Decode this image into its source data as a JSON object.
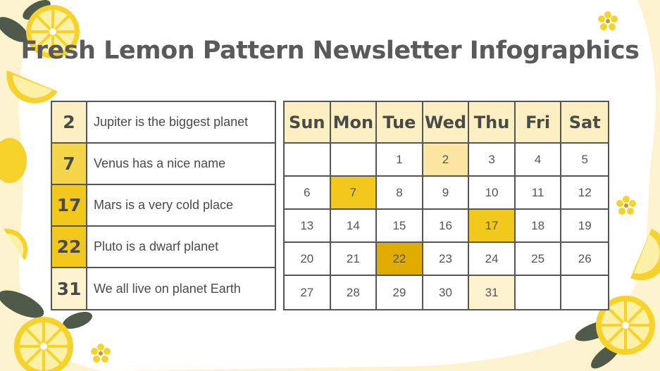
{
  "title": "Fresh Lemon Pattern Newsletter Infographics",
  "colors": {
    "background": "#fdf3cf",
    "panel": "#ffffff",
    "border": "#555555",
    "highlight_light": "#fbe7a2",
    "highlight_medium": "#f2c81c",
    "highlight_strong": "#e0ac00",
    "header_fill": "#fcefc2",
    "lemon": "#f6d22a",
    "leaf": "#4f5a4a"
  },
  "events": [
    {
      "day": "2",
      "text": "Jupiter is the biggest planet",
      "color": "#fcefc2"
    },
    {
      "day": "7",
      "text": "Venus has a nice name",
      "color": "#f5d64a"
    },
    {
      "day": "17",
      "text": "Mars is a very cold place",
      "color": "#f2c81c"
    },
    {
      "day": "22",
      "text": "Pluto is a dwarf planet",
      "color": "#f2c81c"
    },
    {
      "day": "31",
      "text": "We all live on planet Earth",
      "color": "#fdf3cf"
    }
  ],
  "calendar": {
    "weekdays": [
      "Sun",
      "Mon",
      "Tue",
      "Wed",
      "Thu",
      "Fri",
      "Sat"
    ],
    "weeks": [
      [
        "",
        "",
        "1",
        "2",
        "3",
        "4",
        "5"
      ],
      [
        "6",
        "7",
        "8",
        "9",
        "10",
        "11",
        "12"
      ],
      [
        "13",
        "14",
        "15",
        "16",
        "17",
        "18",
        "19"
      ],
      [
        "20",
        "21",
        "22",
        "23",
        "24",
        "25",
        "26"
      ],
      [
        "27",
        "28",
        "29",
        "30",
        "31",
        "",
        ""
      ]
    ],
    "highlights": {
      "2": "#fbe7a2",
      "7": "#f2c81c",
      "17": "#f2c81c",
      "22": "#e0ac00",
      "31": "#fdf3cf"
    }
  },
  "decorations": [
    "lemon-icon",
    "lemon-slice-icon",
    "leaf-icon",
    "flower-icon"
  ]
}
